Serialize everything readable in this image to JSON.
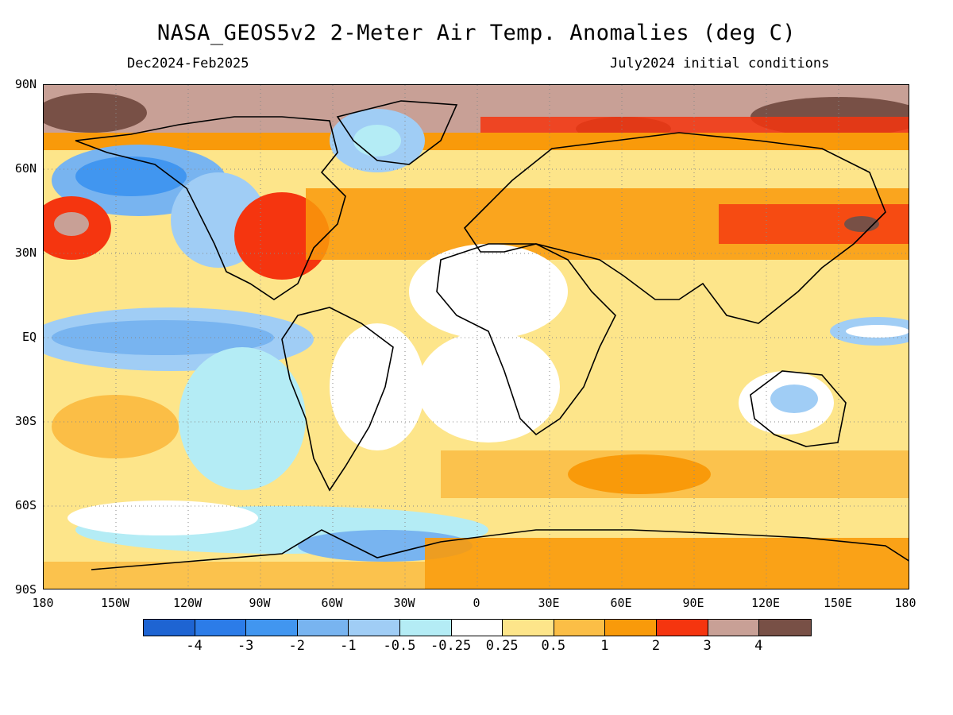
{
  "title": "NASA_GEOS5v2 2-Meter Air Temp. Anomalies (deg C)",
  "period": "Dec2024-Feb2025",
  "init": "July2024 initial conditions",
  "lat_labels": [
    "90N",
    "60N",
    "30N",
    "EQ",
    "30S",
    "60S",
    "90S"
  ],
  "lon_labels": [
    "180",
    "150W",
    "120W",
    "90W",
    "60W",
    "30W",
    "0",
    "30E",
    "60E",
    "90E",
    "120E",
    "150E",
    "180"
  ],
  "colorbar": {
    "colors": [
      "#1e64d2",
      "#2c7ce8",
      "#4196f0",
      "#78b4f0",
      "#a0cdf5",
      "#b4ecf5",
      "#ffffff",
      "#fde58a",
      "#fbbe46",
      "#f99a0a",
      "#f5350f",
      "#c8a096",
      "#785046"
    ],
    "labels": [
      "-4",
      "-3",
      "-2",
      "-1",
      "-0.5",
      "-0.25",
      "0.25",
      "0.5",
      "1",
      "2",
      "3",
      "4"
    ]
  }
}
